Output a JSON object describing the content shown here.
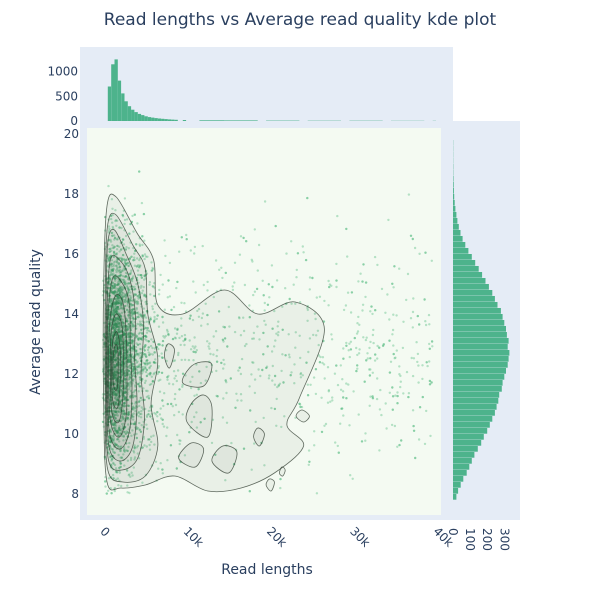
{
  "chart_data": {
    "type": "scatter",
    "title": "Read lengths vs Average read quality kde plot",
    "xlabel": "Read lengths",
    "ylabel": "Average read quality",
    "x_ticks": [
      "0",
      "10k",
      "20k",
      "30k",
      "40k"
    ],
    "x_tick_values": [
      0,
      10000,
      20000,
      30000,
      40000
    ],
    "y_ticks": [
      "8",
      "10",
      "12",
      "14",
      "16",
      "18",
      "20"
    ],
    "y_tick_values": [
      8,
      10,
      12,
      14,
      16,
      18,
      20
    ],
    "xlim": [
      -1500,
      41000
    ],
    "ylim": [
      7.3,
      20.2
    ],
    "top_hist_ticks": [
      "0",
      "500",
      "1000"
    ],
    "top_hist_tick_values": [
      0,
      500,
      1000
    ],
    "top_hist_ylim": [
      0,
      1400
    ],
    "right_hist_ticks": [
      "0",
      "100",
      "200",
      "300"
    ],
    "right_hist_tick_values": [
      0,
      100,
      200,
      300
    ],
    "right_hist_xlim": [
      0,
      380
    ],
    "top_histogram": {
      "bin_width": 400,
      "bin_starts": [
        1000,
        1400,
        1800,
        2200,
        2600,
        3000,
        3400,
        3800,
        4200,
        4600,
        5000,
        5400,
        5800,
        6200,
        6600,
        7000,
        7400,
        7800,
        8200,
        8600,
        9000,
        10000,
        12000,
        15000,
        20000,
        25000,
        30000,
        35000,
        40000
      ],
      "counts": [
        700,
        1150,
        1250,
        820,
        560,
        400,
        300,
        230,
        180,
        145,
        120,
        95,
        80,
        68,
        58,
        50,
        44,
        38,
        33,
        29,
        25,
        20,
        15,
        12,
        9,
        7,
        6,
        5,
        4
      ]
    },
    "right_histogram": {
      "bin_width": 0.2,
      "bin_starts": [
        7.8,
        8.0,
        8.2,
        8.4,
        8.6,
        8.8,
        9.0,
        9.2,
        9.4,
        9.6,
        9.8,
        10.0,
        10.2,
        10.4,
        10.6,
        10.8,
        11.0,
        11.2,
        11.4,
        11.6,
        11.8,
        12.0,
        12.2,
        12.4,
        12.6,
        12.8,
        13.0,
        13.2,
        13.4,
        13.6,
        13.8,
        14.0,
        14.2,
        14.4,
        14.6,
        14.8,
        15.0,
        15.2,
        15.4,
        15.6,
        15.8,
        16.0,
        16.2,
        16.4,
        16.6,
        16.8,
        17.0,
        17.2,
        17.4,
        17.6,
        17.8,
        18.0,
        18.2,
        18.4,
        18.6,
        18.8,
        19.0,
        19.2,
        19.4,
        19.6
      ],
      "counts": [
        20,
        30,
        45,
        60,
        80,
        95,
        110,
        125,
        145,
        165,
        180,
        200,
        215,
        230,
        245,
        255,
        265,
        270,
        285,
        290,
        300,
        310,
        320,
        325,
        330,
        320,
        325,
        315,
        310,
        300,
        290,
        280,
        260,
        245,
        230,
        210,
        190,
        170,
        150,
        130,
        110,
        90,
        72,
        56,
        44,
        34,
        26,
        20,
        14,
        10,
        7,
        5,
        4,
        3,
        2,
        2,
        1,
        1,
        1,
        1
      ]
    },
    "kde_contours": [
      {
        "level": 1,
        "points": [
          [
            900,
            8.4
          ],
          [
            2600,
            8.2
          ],
          [
            5500,
            8.3
          ],
          [
            9000,
            8.6
          ],
          [
            13000,
            8.1
          ],
          [
            17000,
            8.2
          ],
          [
            21000,
            8.7
          ],
          [
            24500,
            9.6
          ],
          [
            22500,
            10.3
          ],
          [
            24000,
            11.2
          ],
          [
            27000,
            13.5
          ],
          [
            23500,
            14.4
          ],
          [
            19000,
            14.0
          ],
          [
            15000,
            14.8
          ],
          [
            10000,
            14.0
          ],
          [
            7000,
            14.3
          ],
          [
            6500,
            15.8
          ],
          [
            4500,
            16.7
          ],
          [
            2000,
            17.9
          ],
          [
            900,
            17.6
          ],
          [
            500,
            15.0
          ],
          [
            500,
            11.0
          ]
        ]
      },
      {
        "level": 2,
        "points": [
          [
            1000,
            8.8
          ],
          [
            2800,
            8.4
          ],
          [
            5500,
            8.6
          ],
          [
            7000,
            9.6
          ],
          [
            6200,
            11.0
          ],
          [
            7000,
            12.5
          ],
          [
            5800,
            14.0
          ],
          [
            5500,
            15.5
          ],
          [
            4000,
            16.3
          ],
          [
            2000,
            17.3
          ],
          [
            1000,
            17.0
          ],
          [
            700,
            15.0
          ],
          [
            700,
            11.0
          ]
        ]
      },
      {
        "level": 3,
        "points": [
          [
            1100,
            9.1
          ],
          [
            2700,
            8.8
          ],
          [
            4600,
            9.2
          ],
          [
            5400,
            10.5
          ],
          [
            5000,
            12.0
          ],
          [
            5300,
            13.6
          ],
          [
            4600,
            15.0
          ],
          [
            3200,
            16.0
          ],
          [
            1800,
            16.8
          ],
          [
            1000,
            16.4
          ],
          [
            800,
            14.5
          ],
          [
            800,
            11.0
          ]
        ]
      },
      {
        "level": 4,
        "points": [
          [
            1200,
            9.5
          ],
          [
            2600,
            9.1
          ],
          [
            4000,
            9.6
          ],
          [
            4500,
            11.0
          ],
          [
            4200,
            12.6
          ],
          [
            4300,
            14.0
          ],
          [
            3600,
            15.2
          ],
          [
            2400,
            15.8
          ],
          [
            1300,
            15.8
          ],
          [
            900,
            14.0
          ],
          [
            900,
            11.0
          ]
        ]
      },
      {
        "level": 5,
        "points": [
          [
            1300,
            9.9
          ],
          [
            2500,
            9.5
          ],
          [
            3600,
            10.1
          ],
          [
            3900,
            11.5
          ],
          [
            3700,
            13.0
          ],
          [
            3600,
            14.3
          ],
          [
            2800,
            15.0
          ],
          [
            1600,
            15.2
          ],
          [
            1000,
            13.8
          ],
          [
            1000,
            11.2
          ]
        ]
      },
      {
        "level": 6,
        "points": [
          [
            1400,
            10.3
          ],
          [
            2400,
            9.9
          ],
          [
            3200,
            10.6
          ],
          [
            3300,
            12.0
          ],
          [
            3200,
            13.4
          ],
          [
            2800,
            14.4
          ],
          [
            1900,
            14.6
          ],
          [
            1200,
            13.6
          ],
          [
            1100,
            11.5
          ]
        ]
      },
      {
        "level": 7,
        "points": [
          [
            1500,
            10.7
          ],
          [
            2300,
            10.4
          ],
          [
            2800,
            11.2
          ],
          [
            2900,
            12.4
          ],
          [
            2700,
            13.6
          ],
          [
            2000,
            14.0
          ],
          [
            1400,
            13.4
          ],
          [
            1300,
            12.0
          ]
        ]
      },
      {
        "level": 8,
        "points": [
          [
            1600,
            11.1
          ],
          [
            2200,
            10.9
          ],
          [
            2500,
            11.8
          ],
          [
            2500,
            12.8
          ],
          [
            2100,
            13.4
          ],
          [
            1600,
            13.1
          ],
          [
            1450,
            12.2
          ]
        ]
      },
      {
        "level": 9,
        "points": [
          [
            1700,
            11.6
          ],
          [
            2100,
            11.5
          ],
          [
            2250,
            12.2
          ],
          [
            2150,
            12.9
          ],
          [
            1800,
            12.9
          ],
          [
            1600,
            12.3
          ]
        ]
      },
      {
        "level": 10,
        "points": [
          [
            10000,
            11.7
          ],
          [
            12500,
            11.6
          ],
          [
            13500,
            12.3
          ],
          [
            12200,
            12.4
          ],
          [
            10800,
            12.2
          ]
        ]
      },
      {
        "level": 11,
        "points": [
          [
            9500,
            9.2
          ],
          [
            11500,
            8.9
          ],
          [
            12500,
            9.5
          ],
          [
            11000,
            9.7
          ]
        ]
      },
      {
        "level": 12,
        "points": [
          [
            10500,
            10.4
          ],
          [
            13000,
            9.9
          ],
          [
            13500,
            10.9
          ],
          [
            12500,
            11.3
          ],
          [
            11000,
            11.0
          ]
        ]
      },
      {
        "level": 13,
        "points": [
          [
            7800,
            12.6
          ],
          [
            8400,
            12.2
          ],
          [
            9000,
            12.8
          ],
          [
            8200,
            13.0
          ]
        ]
      },
      {
        "level": 14,
        "points": [
          [
            13500,
            9.1
          ],
          [
            15500,
            8.7
          ],
          [
            16500,
            9.4
          ],
          [
            14800,
            9.6
          ]
        ]
      },
      {
        "level": 15,
        "points": [
          [
            18500,
            9.9
          ],
          [
            19200,
            9.6
          ],
          [
            19800,
            10.0
          ],
          [
            19000,
            10.2
          ]
        ]
      },
      {
        "level": 16,
        "points": [
          [
            23600,
            10.6
          ],
          [
            24500,
            10.4
          ],
          [
            25200,
            10.6
          ],
          [
            24300,
            10.8
          ]
        ]
      },
      {
        "level": 17,
        "points": [
          [
            20000,
            8.3
          ],
          [
            20600,
            8.1
          ],
          [
            21000,
            8.4
          ],
          [
            20400,
            8.5
          ]
        ]
      },
      {
        "level": 18,
        "points": [
          [
            21600,
            8.7
          ],
          [
            22000,
            8.6
          ],
          [
            22300,
            8.8
          ],
          [
            21900,
            8.9
          ]
        ]
      }
    ],
    "scatter_spec": {
      "n": 4200,
      "length_median": 2300,
      "length_spread": 1.1,
      "length_max": 40000,
      "quality_mean": 12.8,
      "quality_sd": 1.8,
      "quality_min": 8.0,
      "quality_max": 19.4
    },
    "colors": {
      "marker": "#3cb371",
      "histogram": "#4db38c",
      "contour": "#2f3b2f",
      "plot_bg": "#f4faf2",
      "margin_bg": "#e5ecf6"
    }
  }
}
